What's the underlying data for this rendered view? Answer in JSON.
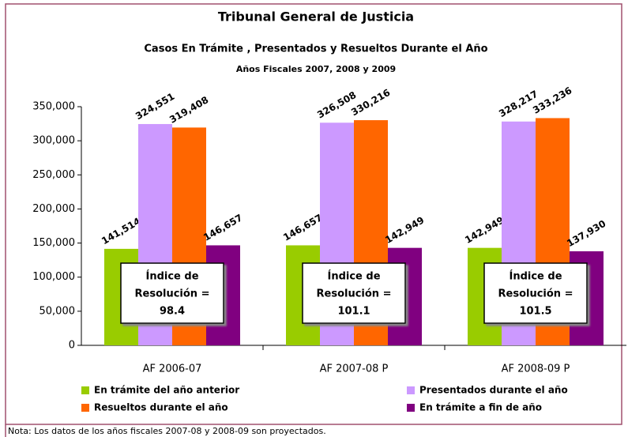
{
  "chart_data": {
    "type": "bar",
    "title": "Tribunal General de Justicia",
    "subtitle": "Casos En Trámite , Presentados y Resueltos Durante el Año",
    "subtitle2": "Años Fiscales 2007, 2008 y 2009",
    "categories": [
      "AF 2006-07",
      "AF 2007-08 P",
      "AF 2008-09 P"
    ],
    "series": [
      {
        "name": "En trámite del año anterior",
        "color": "#99cc00",
        "values": [
          141514,
          146657,
          142949
        ],
        "value_labels": [
          "141,514",
          "146,657",
          "142,949"
        ]
      },
      {
        "name": "Presentados durante el año",
        "color": "#cc99ff",
        "values": [
          324551,
          326508,
          328217
        ],
        "value_labels": [
          "324,551",
          "326,508",
          "328,217"
        ]
      },
      {
        "name": "Resueltos durante el año",
        "color": "#ff6600",
        "values": [
          319408,
          330216,
          333236
        ],
        "value_labels": [
          "319,408",
          "330,216",
          "333,236"
        ]
      },
      {
        "name": "En trámite a fin de año",
        "color": "#800080",
        "values": [
          146657,
          142949,
          137930
        ],
        "value_labels": [
          "146,657",
          "142,949",
          "137,930"
        ]
      }
    ],
    "ylim": [
      0,
      350000
    ],
    "yticks": [
      0,
      {
        "value": 50000,
        "label": "50,000"
      },
      {
        "value": 100000,
        "label": "100,000"
      },
      {
        "value": 150000,
        "label": "150,000"
      },
      {
        "value": 200000,
        "label": "200,000"
      },
      {
        "value": 250000,
        "label": "250,000"
      },
      {
        "value": 300000,
        "label": "300,000"
      },
      {
        "value": 350000,
        "label": "350,000"
      }
    ],
    "annotations": [
      [
        "Índice de",
        "Resolución =",
        "98.4"
      ],
      [
        "Índice de",
        "Resolución =",
        "101.1"
      ],
      [
        "Índice de",
        "Resolución =",
        "101.5"
      ]
    ],
    "note": "Nota: Los datos de los años fiscales 2007-08 y 2008-09 son proyectados."
  }
}
